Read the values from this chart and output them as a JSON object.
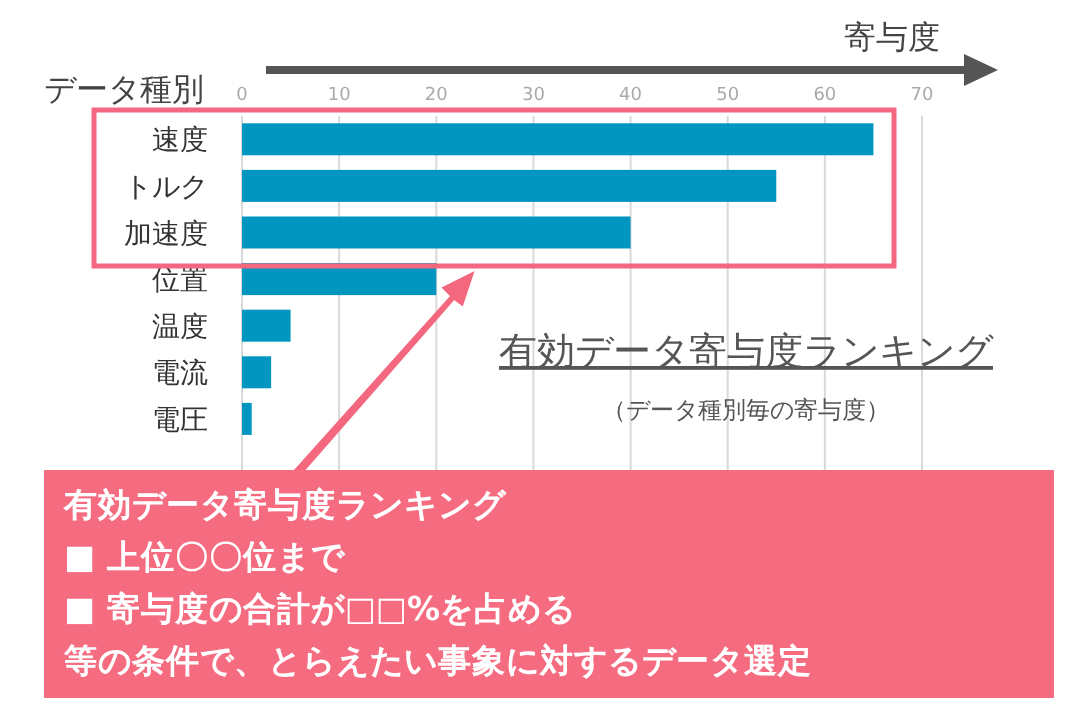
{
  "chart_data": {
    "type": "bar",
    "orientation": "horizontal",
    "title": "有効データ寄与度ランキング",
    "subtitle": "（データ種別毎の寄与度）",
    "xlabel": "寄与度",
    "ylabel": "データ種別",
    "categories": [
      "速度",
      "トルク",
      "加速度",
      "位置",
      "温度",
      "電流",
      "電圧"
    ],
    "values": [
      65,
      55,
      40,
      20,
      5,
      3,
      1
    ],
    "color": "#0096c0",
    "xlim": [
      0,
      70
    ],
    "xticks": [
      0,
      10,
      20,
      30,
      40,
      50,
      60,
      70
    ],
    "grid": "x",
    "annotations": [
      "有効データ寄与度ランキング",
      "■ 上位〇〇位まで",
      "■ 寄与度の合計が□□%を占める",
      "等の条件で、とらえたい事象に対するデータ選定"
    ]
  }
}
